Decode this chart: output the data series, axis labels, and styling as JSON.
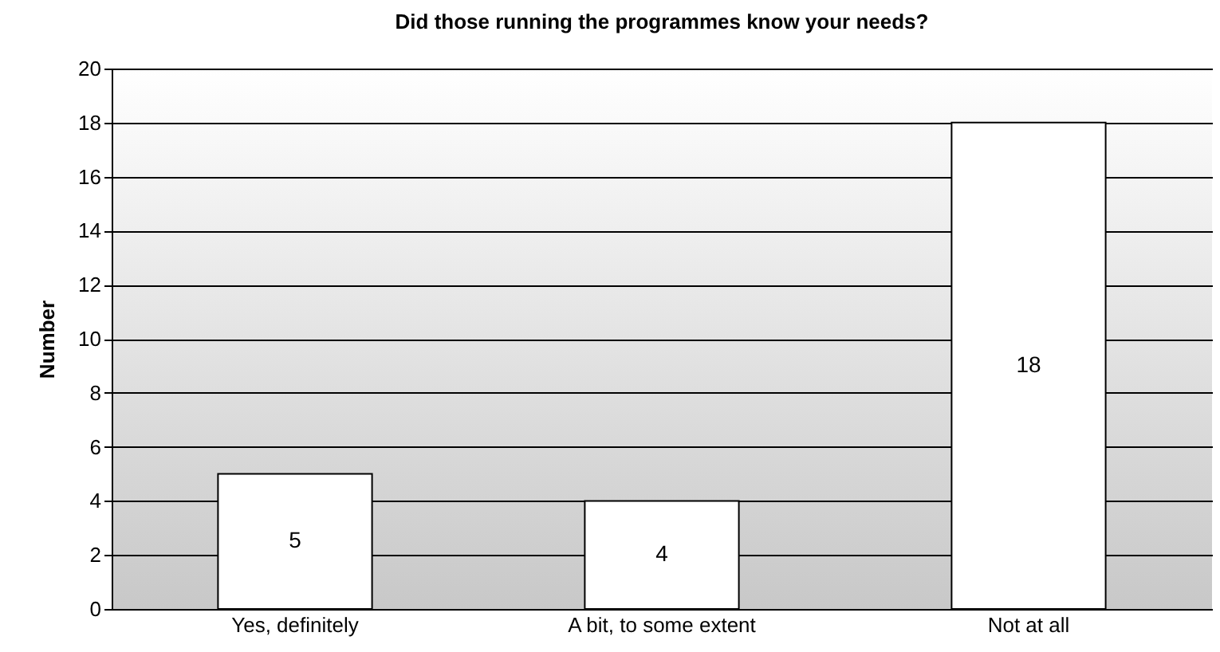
{
  "chart_data": {
    "type": "bar",
    "title": "Did those running the programmes know your needs?",
    "ylabel": "Number",
    "categories": [
      "Yes, definitely",
      "A bit, to some extent",
      "Not at all"
    ],
    "values": [
      5,
      4,
      18
    ],
    "color": "#ffffff",
    "ylim": [
      0,
      20
    ],
    "yticks": [
      0,
      2,
      4,
      6,
      8,
      10,
      12,
      14,
      16,
      18,
      20
    ],
    "grid": "y",
    "data_labels": true
  }
}
